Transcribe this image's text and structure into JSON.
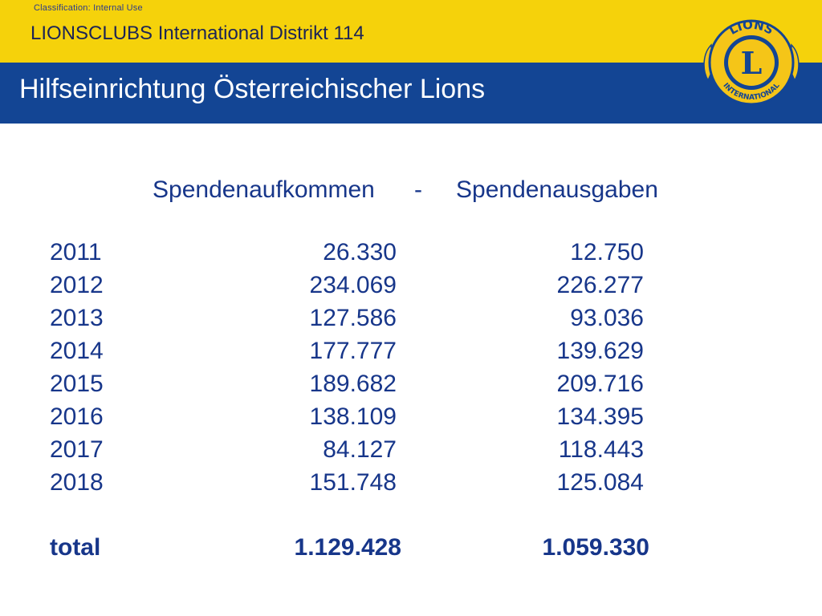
{
  "classification": "Classification: Internal Use",
  "district": "LIONSCLUBS International Distrikt 114",
  "slide_title": "Hilfseinrichtung Österreichischer Lions",
  "logo": {
    "top_text": "LIONS",
    "bottom_text": "INTERNATIONAL",
    "letter": "L",
    "colors": {
      "gold": "#f5c518",
      "blue": "#134594"
    }
  },
  "table": {
    "header_income": "Spendenaufkommen",
    "header_separator": "-",
    "header_expenses": "Spendenausgaben",
    "rows": [
      {
        "year": "2011",
        "income": "26.330",
        "expenses": "12.750"
      },
      {
        "year": "2012",
        "income": "234.069",
        "expenses": "226.277"
      },
      {
        "year": "2013",
        "income": "127.586",
        "expenses": "93.036"
      },
      {
        "year": "2014",
        "income": "177.777",
        "expenses": "139.629"
      },
      {
        "year": "2015",
        "income": "189.682",
        "expenses": "209.716"
      },
      {
        "year": "2016",
        "income": "138.109",
        "expenses": "134.395"
      },
      {
        "year": "2017",
        "income": "84.127",
        "expenses": "118.443"
      },
      {
        "year": "2018",
        "income": "151.748",
        "expenses": "125.084"
      }
    ],
    "total": {
      "label": "total",
      "income": "1.129.428",
      "expenses": "1.059.330"
    }
  }
}
